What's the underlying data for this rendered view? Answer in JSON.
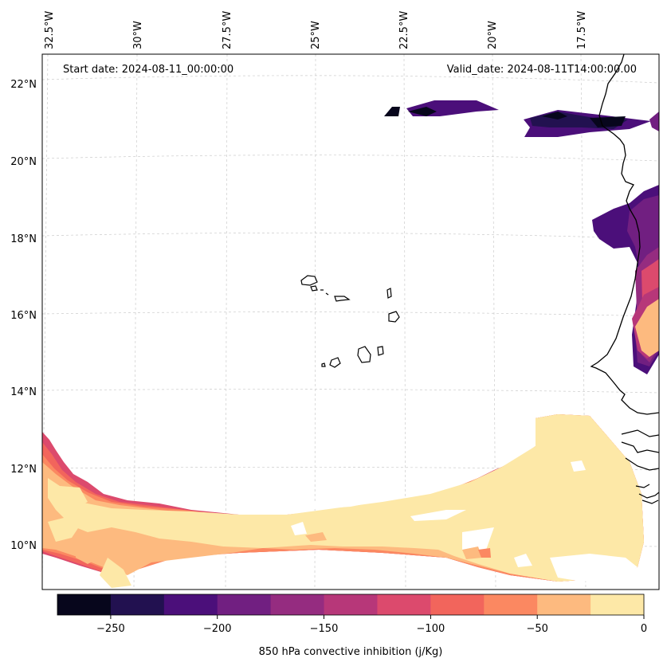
{
  "header": {
    "start_date": "Start date: 2024-08-11_00:00:00",
    "valid_date": "Valid_date: 2024-08-11T14:00:00.00"
  },
  "lon_ticks": [
    "32.5°W",
    "30°W",
    "27.5°W",
    "25°W",
    "22.5°W",
    "20°W",
    "17.5°W"
  ],
  "lat_ticks": [
    "22°N",
    "20°N",
    "18°N",
    "16°N",
    "14°N",
    "12°N",
    "10°N"
  ],
  "colorbar": {
    "title": "850 hPa convective inhibition (j/Kg)",
    "tick_labels": [
      "−250",
      "−200",
      "−150",
      "−100",
      "−50",
      "0"
    ],
    "range": [
      -275,
      0
    ],
    "step": 25,
    "colors": [
      "#07061c",
      "#221150",
      "#4b0f7a",
      "#711f81",
      "#952c80",
      "#b73779",
      "#dc4a6d",
      "#f2655c",
      "#fb8861",
      "#fdba7f",
      "#fde8a7"
    ]
  },
  "features": [
    "cape-verde-islands",
    "west-africa-coastline"
  ]
}
